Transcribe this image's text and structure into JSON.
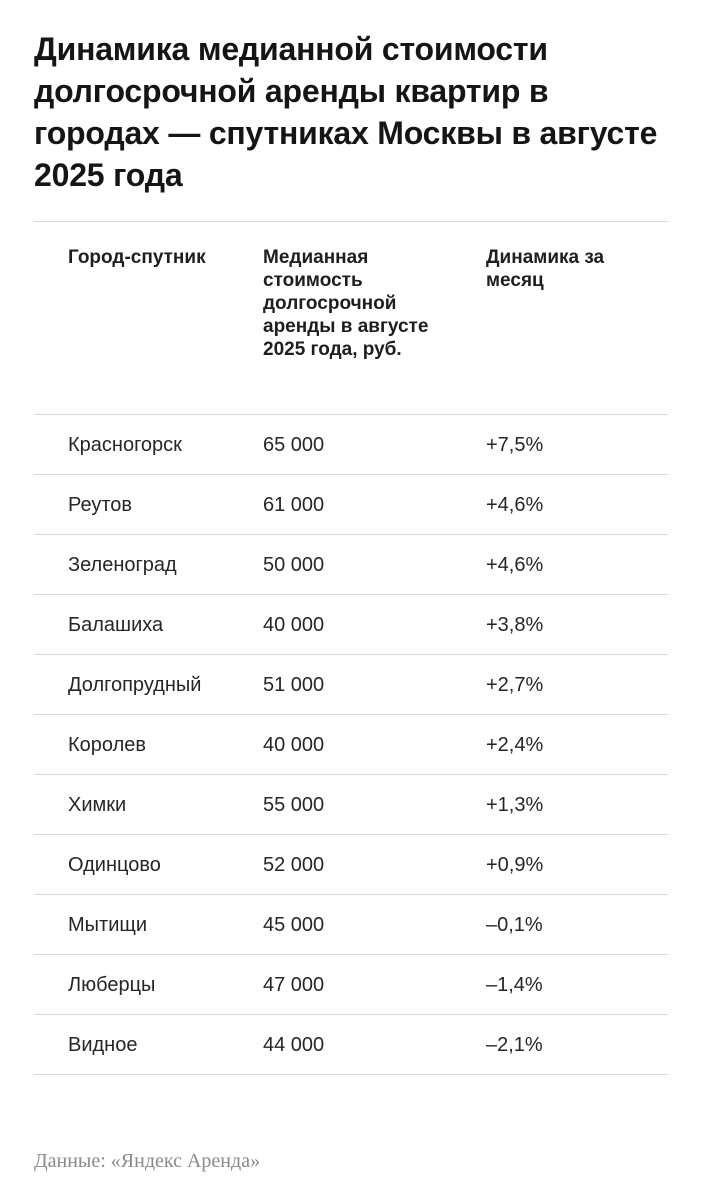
{
  "title": "Динамика медианной стоимости долгосрочной аренды квартир в городах — спутниках Москвы в августе 2025 года",
  "source": "Данные: «Яндекс Аренда»",
  "chart_data": {
    "type": "table",
    "title": "Динамика медианной стоимости долгосрочной аренды квартир в городах — спутниках Москвы в августе 2025 года",
    "columns": [
      "Город-спутник",
      "Медианная стоимость долгосрочной аренды в августе 2025 года, руб.",
      "Динамика за месяц"
    ],
    "rows": [
      {
        "city": "Красногорск",
        "price": "65 000",
        "change": "+7,5%"
      },
      {
        "city": "Реутов",
        "price": "61 000",
        "change": "+4,6%"
      },
      {
        "city": "Зеленоград",
        "price": "50 000",
        "change": "+4,6%"
      },
      {
        "city": "Балашиха",
        "price": "40 000",
        "change": "+3,8%"
      },
      {
        "city": "Долгопрудный",
        "price": "51 000",
        "change": "+2,7%"
      },
      {
        "city": "Королев",
        "price": "40 000",
        "change": "+2,4%"
      },
      {
        "city": "Химки",
        "price": "55 000",
        "change": "+1,3%"
      },
      {
        "city": "Одинцово",
        "price": "52 000",
        "change": "+0,9%"
      },
      {
        "city": "Мытищи",
        "price": "45 000",
        "change": "–0,1%"
      },
      {
        "city": "Люберцы",
        "price": "47 000",
        "change": "–1,4%"
      },
      {
        "city": "Видное",
        "price": "44 000",
        "change": "–2,1%"
      }
    ],
    "values": [
      65000,
      61000,
      50000,
      40000,
      51000,
      40000,
      55000,
      52000,
      45000,
      47000,
      44000
    ],
    "changes_percent": [
      7.5,
      4.6,
      4.6,
      3.8,
      2.7,
      2.4,
      1.3,
      0.9,
      -0.1,
      -1.4,
      -2.1
    ]
  }
}
